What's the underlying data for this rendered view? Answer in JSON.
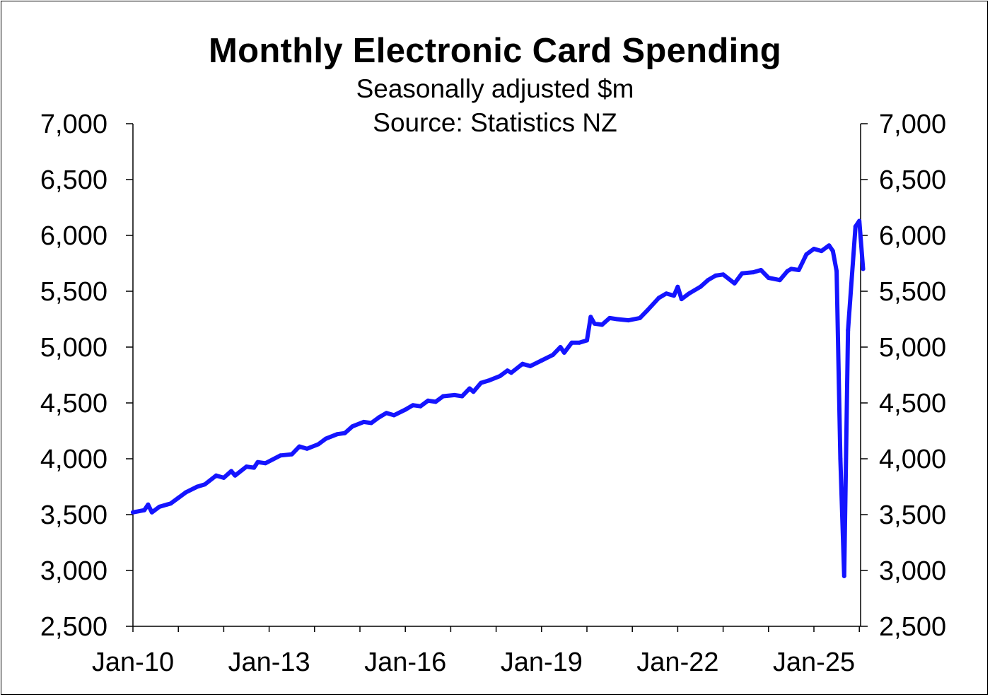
{
  "chart_data": {
    "type": "line",
    "title": "Monthly Electronic Card Spending",
    "subtitle": "Seasonally adjusted $m",
    "source": "Source: Statistics NZ",
    "ylim": [
      2500,
      7000
    ],
    "y_ticks": [
      2500,
      3000,
      3500,
      4000,
      4500,
      5000,
      5500,
      6000,
      6500,
      7000
    ],
    "y_tick_labels": [
      "2,500",
      "3,000",
      "3,500",
      "4,000",
      "4,500",
      "5,000",
      "5,500",
      "6,000",
      "6,500",
      "7,000"
    ],
    "y2_tick_labels": [
      "2,500",
      "3,000",
      "3,500",
      "4,000",
      "4,500",
      "5,000",
      "5,500",
      "6,000",
      "6,500",
      "7,000"
    ],
    "x_range": [
      "2010-01",
      "2026-02"
    ],
    "x_tick_labels": [
      "Jan-10",
      "Jan-13",
      "Jan-16",
      "Jan-19",
      "Jan-22",
      "Jan-25"
    ],
    "grid": false,
    "line_color": "#1414ff",
    "series": [
      {
        "points": [
          [
            "2010-01",
            3520
          ],
          [
            "2010-04",
            3540
          ],
          [
            "2010-05",
            3590
          ],
          [
            "2010-06",
            3520
          ],
          [
            "2010-08",
            3570
          ],
          [
            "2010-10",
            3590
          ],
          [
            "2010-11",
            3600
          ],
          [
            "2011-01",
            3650
          ],
          [
            "2011-03",
            3700
          ],
          [
            "2011-06",
            3750
          ],
          [
            "2011-08",
            3770
          ],
          [
            "2011-11",
            3850
          ],
          [
            "2012-01",
            3830
          ],
          [
            "2012-03",
            3890
          ],
          [
            "2012-04",
            3850
          ],
          [
            "2012-07",
            3930
          ],
          [
            "2012-09",
            3920
          ],
          [
            "2012-10",
            3970
          ],
          [
            "2012-12",
            3960
          ],
          [
            "2013-04",
            4030
          ],
          [
            "2013-07",
            4040
          ],
          [
            "2013-09",
            4110
          ],
          [
            "2013-11",
            4090
          ],
          [
            "2014-02",
            4130
          ],
          [
            "2014-04",
            4180
          ],
          [
            "2014-07",
            4220
          ],
          [
            "2014-09",
            4230
          ],
          [
            "2014-11",
            4290
          ],
          [
            "2015-02",
            4330
          ],
          [
            "2015-04",
            4320
          ],
          [
            "2015-06",
            4370
          ],
          [
            "2015-08",
            4410
          ],
          [
            "2015-10",
            4390
          ],
          [
            "2016-01",
            4440
          ],
          [
            "2016-03",
            4480
          ],
          [
            "2016-05",
            4470
          ],
          [
            "2016-07",
            4520
          ],
          [
            "2016-09",
            4510
          ],
          [
            "2016-11",
            4560
          ],
          [
            "2017-02",
            4570
          ],
          [
            "2017-04",
            4560
          ],
          [
            "2017-06",
            4630
          ],
          [
            "2017-07",
            4600
          ],
          [
            "2017-09",
            4680
          ],
          [
            "2017-11",
            4700
          ],
          [
            "2018-02",
            4740
          ],
          [
            "2018-04",
            4790
          ],
          [
            "2018-05",
            4770
          ],
          [
            "2018-08",
            4850
          ],
          [
            "2018-10",
            4830
          ],
          [
            "2019-01",
            4880
          ],
          [
            "2019-04",
            4930
          ],
          [
            "2019-06",
            5000
          ],
          [
            "2019-07",
            4950
          ],
          [
            "2019-09",
            5040
          ],
          [
            "2019-11",
            5040
          ],
          [
            "2020-01",
            5060
          ],
          [
            "2020-02",
            5270
          ],
          [
            "2020-03",
            5210
          ],
          [
            "2020-05",
            5200
          ],
          [
            "2020-07",
            5260
          ],
          [
            "2020-09",
            5250
          ],
          [
            "2020-12",
            5240
          ],
          [
            "2021-03",
            5260
          ],
          [
            "2021-05",
            5330
          ],
          [
            "2021-08",
            5440
          ],
          [
            "2021-10",
            5480
          ],
          [
            "2021-12",
            5460
          ],
          [
            "2022-01",
            5540
          ],
          [
            "2022-02",
            5430
          ],
          [
            "2022-04",
            5480
          ],
          [
            "2022-07",
            5540
          ],
          [
            "2022-09",
            5600
          ],
          [
            "2022-11",
            5640
          ],
          [
            "2023-01",
            5650
          ],
          [
            "2023-04",
            5570
          ],
          [
            "2023-06",
            5660
          ],
          [
            "2023-09",
            5670
          ],
          [
            "2023-11",
            5690
          ],
          [
            "2024-01",
            5620
          ],
          [
            "2024-04",
            5600
          ],
          [
            "2024-06",
            5680
          ],
          [
            "2024-07",
            5700
          ],
          [
            "2024-09",
            5690
          ],
          [
            "2024-11",
            5830
          ],
          [
            "2025-01",
            5880
          ],
          [
            "2025-03",
            5860
          ],
          [
            "2025-05",
            5910
          ],
          [
            "2025-06",
            5860
          ],
          [
            "2025-07",
            5680
          ],
          [
            "2025-08",
            4000
          ],
          [
            "2025-09",
            2950
          ],
          [
            "2025-10",
            5150
          ],
          [
            "2025-12",
            6080
          ],
          [
            "2026-01",
            6130
          ],
          [
            "2026-02",
            5700
          ]
        ]
      }
    ]
  }
}
